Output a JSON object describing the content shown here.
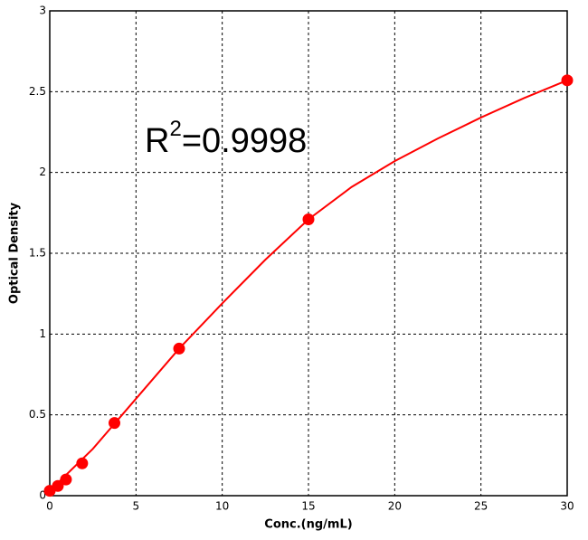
{
  "chart_data": {
    "type": "scatter",
    "x_label": "Conc.(ng/mL)",
    "y_label": "Optical Density",
    "annotation": {
      "base": "R",
      "sup": "2",
      "rest": "=0.9998"
    },
    "xlim": [
      0,
      30
    ],
    "ylim": [
      0,
      3
    ],
    "xticks": [
      0,
      5,
      10,
      15,
      20,
      25,
      30
    ],
    "yticks": [
      0,
      0.5,
      1,
      1.5,
      2,
      2.5,
      3
    ],
    "grid": true,
    "series": [
      {
        "color": "#ff0000",
        "x": [
          0,
          0.47,
          0.94,
          1.88,
          3.75,
          7.5,
          15,
          30
        ],
        "values": [
          0.03,
          0.06,
          0.1,
          0.2,
          0.45,
          0.91,
          1.71,
          2.57
        ]
      }
    ],
    "fit": {
      "color": "#ff0000",
      "x": [
        0,
        2.5,
        5,
        7.5,
        10,
        12.5,
        15,
        17.5,
        20,
        22.5,
        25,
        27.5,
        30
      ],
      "values": [
        0.03,
        0.29,
        0.6,
        0.91,
        1.19,
        1.46,
        1.71,
        1.91,
        2.07,
        2.21,
        2.34,
        2.46,
        2.57
      ]
    }
  }
}
